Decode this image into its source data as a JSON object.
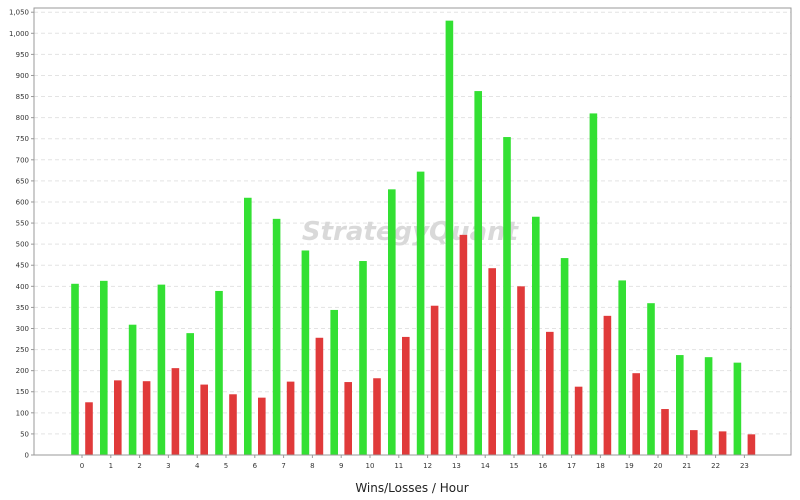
{
  "chart_data": {
    "type": "bar",
    "title": "",
    "xlabel": "Wins/Losses / Hour",
    "ylabel": "",
    "ylim": [
      0,
      1060
    ],
    "yticks": [
      0,
      50,
      100,
      150,
      200,
      250,
      300,
      350,
      400,
      450,
      500,
      550,
      600,
      650,
      700,
      750,
      800,
      850,
      900,
      950,
      1000,
      1050
    ],
    "ytick_labels": [
      "0",
      "50",
      "100",
      "150",
      "200",
      "250",
      "300",
      "350",
      "400",
      "450",
      "500",
      "550",
      "600",
      "650",
      "700",
      "750",
      "800",
      "850",
      "900",
      "950",
      "1,000",
      "1,050"
    ],
    "categories": [
      "0",
      "1",
      "2",
      "3",
      "4",
      "5",
      "6",
      "7",
      "8",
      "9",
      "10",
      "11",
      "12",
      "13",
      "14",
      "15",
      "16",
      "17",
      "18",
      "19",
      "20",
      "21",
      "22",
      "23"
    ],
    "series": [
      {
        "color": "#33e033",
        "values": [
          406,
          413,
          309,
          404,
          289,
          389,
          610,
          560,
          485,
          344,
          460,
          630,
          672,
          1030,
          863,
          754,
          565,
          467,
          810,
          414,
          360,
          237,
          232,
          219
        ]
      },
      {
        "color": "#e03a3a",
        "values": [
          125,
          177,
          175,
          206,
          167,
          144,
          136,
          174,
          278,
          173,
          182,
          280,
          354,
          522,
          443,
          400,
          292,
          162,
          330,
          194,
          109,
          59,
          56,
          49
        ]
      }
    ],
    "grid": true,
    "legend": "none",
    "watermark": "StrategyQuant"
  }
}
